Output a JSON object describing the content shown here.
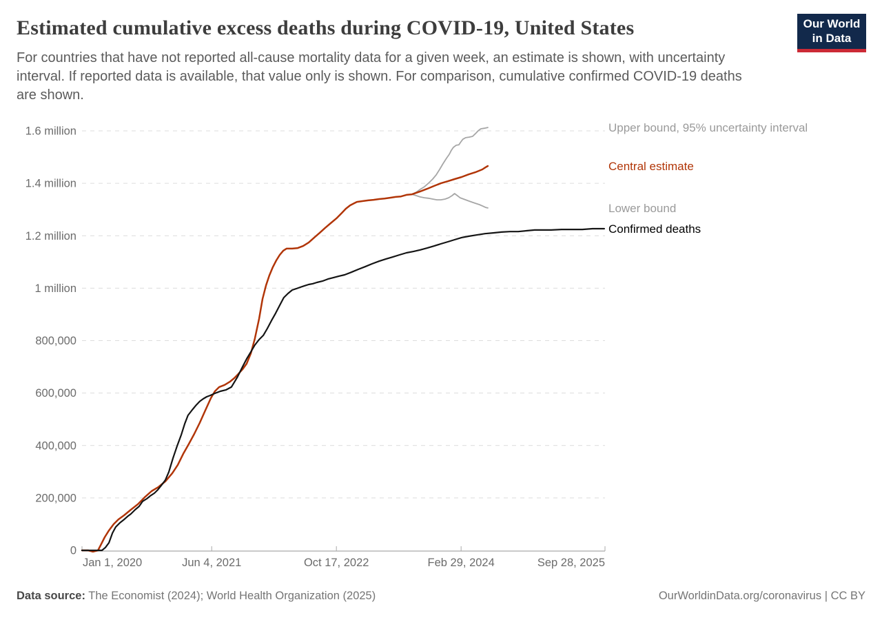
{
  "header": {
    "title": "Estimated cumulative excess deaths during COVID-19, United States",
    "subtitle": "For countries that have not reported all-cause mortality data for a given week, an estimate is shown, with uncertainty interval. If reported data is available, that value only is shown. For comparison, cumulative confirmed COVID-19 deaths are shown.",
    "logo": {
      "line1": "Our World",
      "line2": "in Data",
      "bg_color": "#12294b",
      "accent_color": "#cc2a36"
    }
  },
  "footer": {
    "source_label": "Data source:",
    "source_text": " The Economist (2024); World Health Organization (2025)",
    "link_text": "OurWorldinData.org/coronavirus",
    "license_text": " | CC BY"
  },
  "chart_data": {
    "type": "line",
    "title": "Estimated cumulative excess deaths during COVID-19, United States",
    "x_axis": {
      "unit": "days since 2020-01-01",
      "domain_days": [
        0,
        2097
      ],
      "ticks": [
        {
          "label": "Jan 1, 2020",
          "day": 0
        },
        {
          "label": "Jun 4, 2021",
          "day": 520
        },
        {
          "label": "Oct 17, 2022",
          "day": 1020
        },
        {
          "label": "Feb 29, 2024",
          "day": 1520
        },
        {
          "label": "Sep 28, 2025",
          "day": 2097
        }
      ]
    },
    "y_axis": {
      "unit": "deaths",
      "domain": [
        0,
        1600000
      ],
      "grid": "dashed",
      "ticks": [
        {
          "label": "0",
          "value": 0
        },
        {
          "label": "200,000",
          "value": 200000
        },
        {
          "label": "400,000",
          "value": 400000
        },
        {
          "label": "600,000",
          "value": 600000
        },
        {
          "label": "800,000",
          "value": 800000
        },
        {
          "label": "1 million",
          "value": 1000000
        },
        {
          "label": "1.2 million",
          "value": 1200000
        },
        {
          "label": "1.4 million",
          "value": 1400000
        },
        {
          "label": "1.6 million",
          "value": 1600000
        }
      ]
    },
    "legend_position": "right-of-line-ends",
    "series": [
      {
        "name": "Upper bound, 95% uncertainty interval",
        "color": "#a6a6a6",
        "label_color": "#9a9a9a",
        "width": 1.8,
        "points": [
          [
            1323,
            1358000
          ],
          [
            1340,
            1366000
          ],
          [
            1356,
            1377000
          ],
          [
            1373,
            1387000
          ],
          [
            1389,
            1400000
          ],
          [
            1406,
            1416000
          ],
          [
            1420,
            1432000
          ],
          [
            1434,
            1453000
          ],
          [
            1447,
            1474000
          ],
          [
            1461,
            1495000
          ],
          [
            1473,
            1511000
          ],
          [
            1481,
            1526000
          ],
          [
            1489,
            1537000
          ],
          [
            1500,
            1545000
          ],
          [
            1511,
            1547000
          ],
          [
            1519,
            1558000
          ],
          [
            1527,
            1568000
          ],
          [
            1538,
            1574000
          ],
          [
            1552,
            1576000
          ],
          [
            1566,
            1579000
          ],
          [
            1577,
            1589000
          ],
          [
            1588,
            1600000
          ],
          [
            1599,
            1608000
          ],
          [
            1613,
            1610000
          ],
          [
            1627,
            1613000
          ]
        ]
      },
      {
        "name": "Central estimate",
        "color": "#b13507",
        "label_color": "#b13507",
        "width": 2.5,
        "points": [
          [
            0,
            0
          ],
          [
            25,
            0
          ],
          [
            44,
            -5000
          ],
          [
            64,
            0
          ],
          [
            77,
            24000
          ],
          [
            91,
            50000
          ],
          [
            108,
            76000
          ],
          [
            127,
            100000
          ],
          [
            146,
            118000
          ],
          [
            169,
            134000
          ],
          [
            196,
            155000
          ],
          [
            224,
            176000
          ],
          [
            251,
            202000
          ],
          [
            279,
            226000
          ],
          [
            307,
            242000
          ],
          [
            334,
            263000
          ],
          [
            362,
            294000
          ],
          [
            384,
            326000
          ],
          [
            406,
            368000
          ],
          [
            428,
            405000
          ],
          [
            450,
            444000
          ],
          [
            472,
            486000
          ],
          [
            494,
            533000
          ],
          [
            517,
            581000
          ],
          [
            533,
            607000
          ],
          [
            550,
            623000
          ],
          [
            572,
            631000
          ],
          [
            594,
            644000
          ],
          [
            611,
            657000
          ],
          [
            627,
            673000
          ],
          [
            644,
            691000
          ],
          [
            660,
            712000
          ],
          [
            677,
            751000
          ],
          [
            693,
            807000
          ],
          [
            710,
            883000
          ],
          [
            724,
            959000
          ],
          [
            738,
            1011000
          ],
          [
            751,
            1048000
          ],
          [
            765,
            1080000
          ],
          [
            779,
            1106000
          ],
          [
            793,
            1127000
          ],
          [
            807,
            1143000
          ],
          [
            820,
            1151000
          ],
          [
            843,
            1151000
          ],
          [
            865,
            1153000
          ],
          [
            887,
            1161000
          ],
          [
            909,
            1174000
          ],
          [
            931,
            1193000
          ],
          [
            953,
            1211000
          ],
          [
            975,
            1230000
          ],
          [
            997,
            1248000
          ],
          [
            1020,
            1266000
          ],
          [
            1042,
            1287000
          ],
          [
            1058,
            1303000
          ],
          [
            1075,
            1316000
          ],
          [
            1091,
            1324000
          ],
          [
            1102,
            1329000
          ],
          [
            1124,
            1332000
          ],
          [
            1147,
            1335000
          ],
          [
            1169,
            1337000
          ],
          [
            1191,
            1340000
          ],
          [
            1213,
            1342000
          ],
          [
            1235,
            1345000
          ],
          [
            1257,
            1348000
          ],
          [
            1279,
            1350000
          ],
          [
            1301,
            1356000
          ],
          [
            1323,
            1358000
          ],
          [
            1356,
            1369000
          ],
          [
            1384,
            1379000
          ],
          [
            1412,
            1390000
          ],
          [
            1439,
            1400000
          ],
          [
            1467,
            1408000
          ],
          [
            1494,
            1416000
          ],
          [
            1522,
            1424000
          ],
          [
            1550,
            1434000
          ],
          [
            1577,
            1442000
          ],
          [
            1605,
            1453000
          ],
          [
            1618,
            1461000
          ],
          [
            1627,
            1466000
          ]
        ]
      },
      {
        "name": "Lower bound",
        "color": "#a6a6a6",
        "label_color": "#9a9a9a",
        "width": 1.8,
        "points": [
          [
            1323,
            1358000
          ],
          [
            1340,
            1353000
          ],
          [
            1356,
            1348000
          ],
          [
            1373,
            1345000
          ],
          [
            1389,
            1343000
          ],
          [
            1406,
            1340000
          ],
          [
            1423,
            1337000
          ],
          [
            1439,
            1337000
          ],
          [
            1456,
            1340000
          ],
          [
            1470,
            1345000
          ],
          [
            1484,
            1353000
          ],
          [
            1494,
            1361000
          ],
          [
            1505,
            1353000
          ],
          [
            1516,
            1345000
          ],
          [
            1530,
            1340000
          ],
          [
            1544,
            1335000
          ],
          [
            1561,
            1329000
          ],
          [
            1577,
            1324000
          ],
          [
            1593,
            1319000
          ],
          [
            1607,
            1313000
          ],
          [
            1618,
            1308000
          ],
          [
            1627,
            1306000
          ]
        ]
      },
      {
        "name": "Confirmed deaths",
        "color": "#141414",
        "label_color": "#000000",
        "width": 2.2,
        "points": [
          [
            0,
            0
          ],
          [
            80,
            0
          ],
          [
            94,
            11000
          ],
          [
            108,
            29000
          ],
          [
            122,
            66000
          ],
          [
            135,
            89000
          ],
          [
            152,
            105000
          ],
          [
            169,
            118000
          ],
          [
            182,
            129000
          ],
          [
            196,
            139000
          ],
          [
            213,
            155000
          ],
          [
            229,
            168000
          ],
          [
            243,
            187000
          ],
          [
            260,
            197000
          ],
          [
            274,
            208000
          ],
          [
            290,
            218000
          ],
          [
            304,
            231000
          ],
          [
            320,
            250000
          ],
          [
            334,
            268000
          ],
          [
            348,
            299000
          ],
          [
            365,
            352000
          ],
          [
            381,
            397000
          ],
          [
            398,
            441000
          ],
          [
            412,
            483000
          ],
          [
            425,
            515000
          ],
          [
            442,
            536000
          ],
          [
            456,
            552000
          ],
          [
            472,
            568000
          ],
          [
            486,
            578000
          ],
          [
            500,
            586000
          ],
          [
            514,
            591000
          ],
          [
            533,
            599000
          ],
          [
            555,
            607000
          ],
          [
            577,
            612000
          ],
          [
            599,
            623000
          ],
          [
            622,
            659000
          ],
          [
            644,
            701000
          ],
          [
            660,
            730000
          ],
          [
            677,
            757000
          ],
          [
            693,
            783000
          ],
          [
            710,
            804000
          ],
          [
            727,
            820000
          ],
          [
            743,
            846000
          ],
          [
            760,
            877000
          ],
          [
            776,
            904000
          ],
          [
            793,
            935000
          ],
          [
            809,
            964000
          ],
          [
            826,
            980000
          ],
          [
            843,
            993000
          ],
          [
            859,
            998000
          ],
          [
            876,
            1004000
          ],
          [
            892,
            1009000
          ],
          [
            909,
            1014000
          ],
          [
            925,
            1017000
          ],
          [
            942,
            1022000
          ],
          [
            964,
            1027000
          ],
          [
            986,
            1035000
          ],
          [
            1008,
            1040000
          ],
          [
            1030,
            1046000
          ],
          [
            1053,
            1051000
          ],
          [
            1080,
            1061000
          ],
          [
            1108,
            1072000
          ],
          [
            1135,
            1082000
          ],
          [
            1163,
            1093000
          ],
          [
            1191,
            1103000
          ],
          [
            1218,
            1111000
          ],
          [
            1246,
            1119000
          ],
          [
            1273,
            1127000
          ],
          [
            1301,
            1135000
          ],
          [
            1329,
            1140000
          ],
          [
            1356,
            1146000
          ],
          [
            1384,
            1153000
          ],
          [
            1412,
            1161000
          ],
          [
            1439,
            1169000
          ],
          [
            1467,
            1177000
          ],
          [
            1494,
            1185000
          ],
          [
            1522,
            1193000
          ],
          [
            1550,
            1198000
          ],
          [
            1583,
            1203000
          ],
          [
            1616,
            1208000
          ],
          [
            1649,
            1211000
          ],
          [
            1682,
            1214000
          ],
          [
            1716,
            1216000
          ],
          [
            1749,
            1216000
          ],
          [
            1782,
            1219000
          ],
          [
            1815,
            1222000
          ],
          [
            1881,
            1222000
          ],
          [
            1923,
            1224000
          ],
          [
            2006,
            1224000
          ],
          [
            2047,
            1227000
          ],
          [
            2094,
            1227000
          ]
        ]
      }
    ]
  }
}
